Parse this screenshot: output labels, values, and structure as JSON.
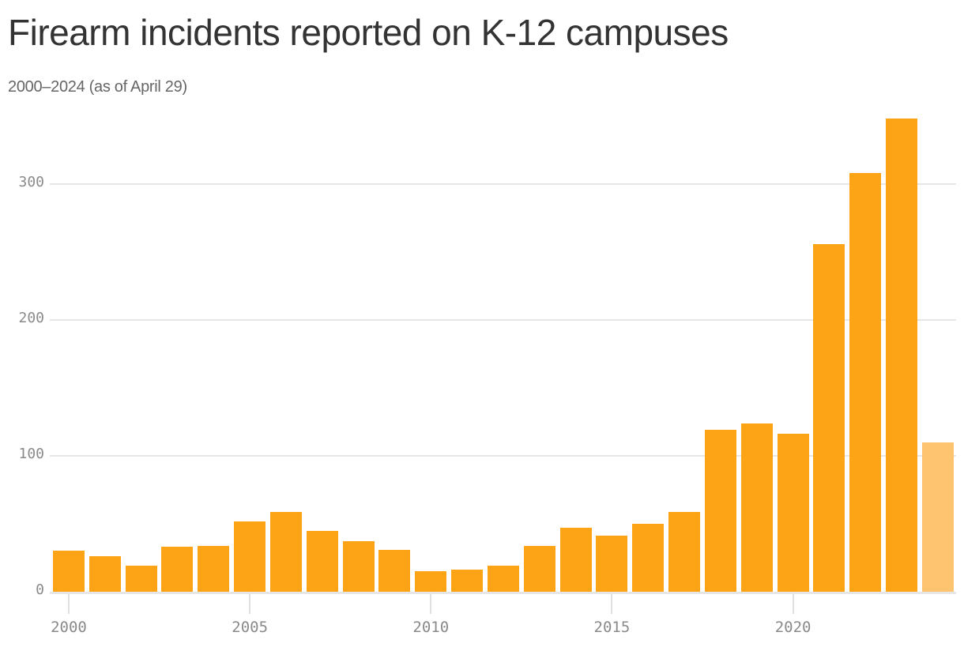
{
  "header": {
    "title": "Firearm incidents reported on K-12 campuses",
    "subtitle": "2000–2024 (as of April 29)"
  },
  "colors": {
    "bar": "#FCA416",
    "bar_partial": "#FFC470",
    "grid": "#E6E6E6",
    "tick_text": "#8A8A8A",
    "title_text": "#333333",
    "subtitle_text": "#666666"
  },
  "axes": {
    "y_ticks": [
      "0",
      "100",
      "200",
      "300"
    ],
    "x_ticks": [
      "2000",
      "2005",
      "2010",
      "2015",
      "2020"
    ]
  },
  "chart_data": {
    "type": "bar",
    "title": "Firearm incidents reported on K-12 campuses",
    "subtitle": "2000–2024 (as of April 29)",
    "xlabel": "",
    "ylabel": "",
    "categories": [
      "2000",
      "2001",
      "2002",
      "2003",
      "2004",
      "2005",
      "2006",
      "2007",
      "2008",
      "2009",
      "2010",
      "2011",
      "2012",
      "2013",
      "2014",
      "2015",
      "2016",
      "2017",
      "2018",
      "2019",
      "2020",
      "2021",
      "2022",
      "2023",
      "2024"
    ],
    "values": [
      30,
      26,
      19,
      33,
      34,
      52,
      59,
      45,
      37,
      31,
      15,
      16,
      19,
      34,
      47,
      41,
      50,
      59,
      119,
      124,
      116,
      256,
      308,
      348,
      110
    ],
    "partial_year": "2024",
    "ylim": [
      0,
      350
    ],
    "y_ticks": [
      0,
      100,
      200,
      300
    ],
    "x_ticks": [
      2000,
      2005,
      2010,
      2015,
      2020
    ],
    "grid": true,
    "legend": null
  }
}
